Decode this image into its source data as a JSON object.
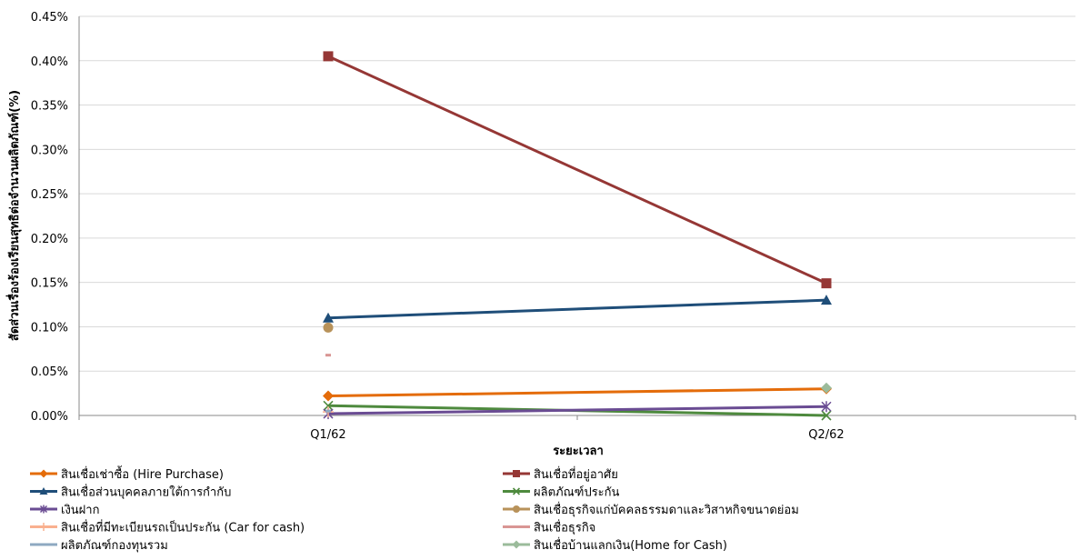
{
  "chart_data": {
    "type": "line",
    "title": "",
    "xlabel": "ระยะเวลา",
    "ylabel": "สัดส่วนเรื่องร้องเรียนสุทธิต่อจำนวนผลิตภัณฑ์(%)",
    "categories": [
      "Q1/62",
      "Q2/62"
    ],
    "ylim": [
      0,
      0.45
    ],
    "yticks": [
      "0.00%",
      "0.05%",
      "0.10%",
      "0.15%",
      "0.20%",
      "0.25%",
      "0.30%",
      "0.35%",
      "0.40%",
      "0.45%"
    ],
    "grid": "horizontal",
    "legend_position": "bottom",
    "series": [
      {
        "name": "สินเชื่อเช่าซื้อ (Hire Purchase)",
        "color": "#E46C0A",
        "marker": "diamond",
        "values": [
          0.022,
          0.03
        ]
      },
      {
        "name": "สินเชื่อที่อยู่อาศัย",
        "color": "#953735",
        "marker": "square",
        "values": [
          0.405,
          0.149
        ]
      },
      {
        "name": "สินเชื่อส่วนบุคคลภายใต้การกำกับ",
        "color": "#1F4E79",
        "marker": "triangle",
        "values": [
          0.11,
          0.13
        ]
      },
      {
        "name": "ผลิตภัณฑ์ประกัน",
        "color": "#4E8A3E",
        "marker": "x",
        "values": [
          0.011,
          0.0
        ]
      },
      {
        "name": "เงินฝาก",
        "color": "#6A4C93",
        "marker": "star",
        "values": [
          0.002,
          0.01
        ]
      },
      {
        "name": "สินเชื่อธุรกิจแก่บัคคลธรรมดาและวิสาหกิจขนาดย่อม",
        "color": "#B8925A",
        "marker": "circle",
        "values": [
          0.099,
          null
        ]
      },
      {
        "name": "สินเชื่อที่มีทะเบียนรถเป็นประกัน (Car for cash)",
        "color": "#F9B08F",
        "marker": "plus",
        "values": [
          0.004,
          null
        ]
      },
      {
        "name": "สินเชื่อธุรกิจ",
        "color": "#D99694",
        "marker": "dash",
        "values": [
          0.068,
          null
        ]
      },
      {
        "name": "ผลิตภัณฑ์กองทุนรวม",
        "color": "#8EA9C1",
        "marker": "dash",
        "values": [
          0.005,
          null
        ]
      },
      {
        "name": "สินเชื่อบ้านแลกเงิน(Home for Cash)",
        "color": "#9BBB9B",
        "marker": "diamond",
        "values": [
          null,
          0.031
        ]
      }
    ]
  }
}
